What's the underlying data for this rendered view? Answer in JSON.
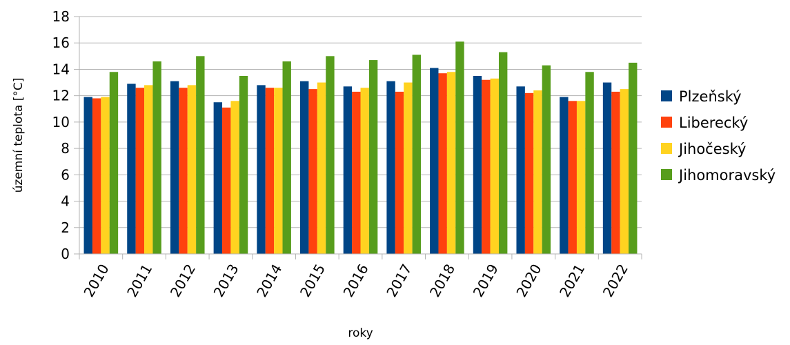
{
  "chart_data": {
    "type": "bar",
    "title": "",
    "xlabel": "roky",
    "ylabel": "územní teplota [°C]",
    "ylim": [
      0,
      18
    ],
    "yticks": [
      0,
      2,
      4,
      6,
      8,
      10,
      12,
      14,
      16,
      18
    ],
    "grid": true,
    "legend_position": "right",
    "categories": [
      "2010",
      "2011",
      "2012",
      "2013",
      "2014",
      "2015",
      "2016",
      "2017",
      "2018",
      "2019",
      "2020",
      "2021",
      "2022"
    ],
    "series": [
      {
        "name": "Plzeňský",
        "color": "#004586",
        "values": [
          11.9,
          12.9,
          13.1,
          11.5,
          12.8,
          13.1,
          12.7,
          13.1,
          14.1,
          13.5,
          12.7,
          11.9,
          13.0
        ]
      },
      {
        "name": "Liberecký",
        "color": "#ff420e",
        "values": [
          11.8,
          12.6,
          12.6,
          11.1,
          12.6,
          12.5,
          12.3,
          12.3,
          13.7,
          13.2,
          12.2,
          11.6,
          12.3
        ]
      },
      {
        "name": "Jihočeský",
        "color": "#ffd320",
        "values": [
          11.9,
          12.8,
          12.8,
          11.6,
          12.6,
          13.0,
          12.6,
          13.0,
          13.8,
          13.3,
          12.4,
          11.6,
          12.5
        ]
      },
      {
        "name": "Jihomoravský",
        "color": "#579d1c",
        "values": [
          13.8,
          14.6,
          15.0,
          13.5,
          14.6,
          15.0,
          14.7,
          15.1,
          16.1,
          15.3,
          14.3,
          13.8,
          14.5
        ]
      }
    ]
  }
}
